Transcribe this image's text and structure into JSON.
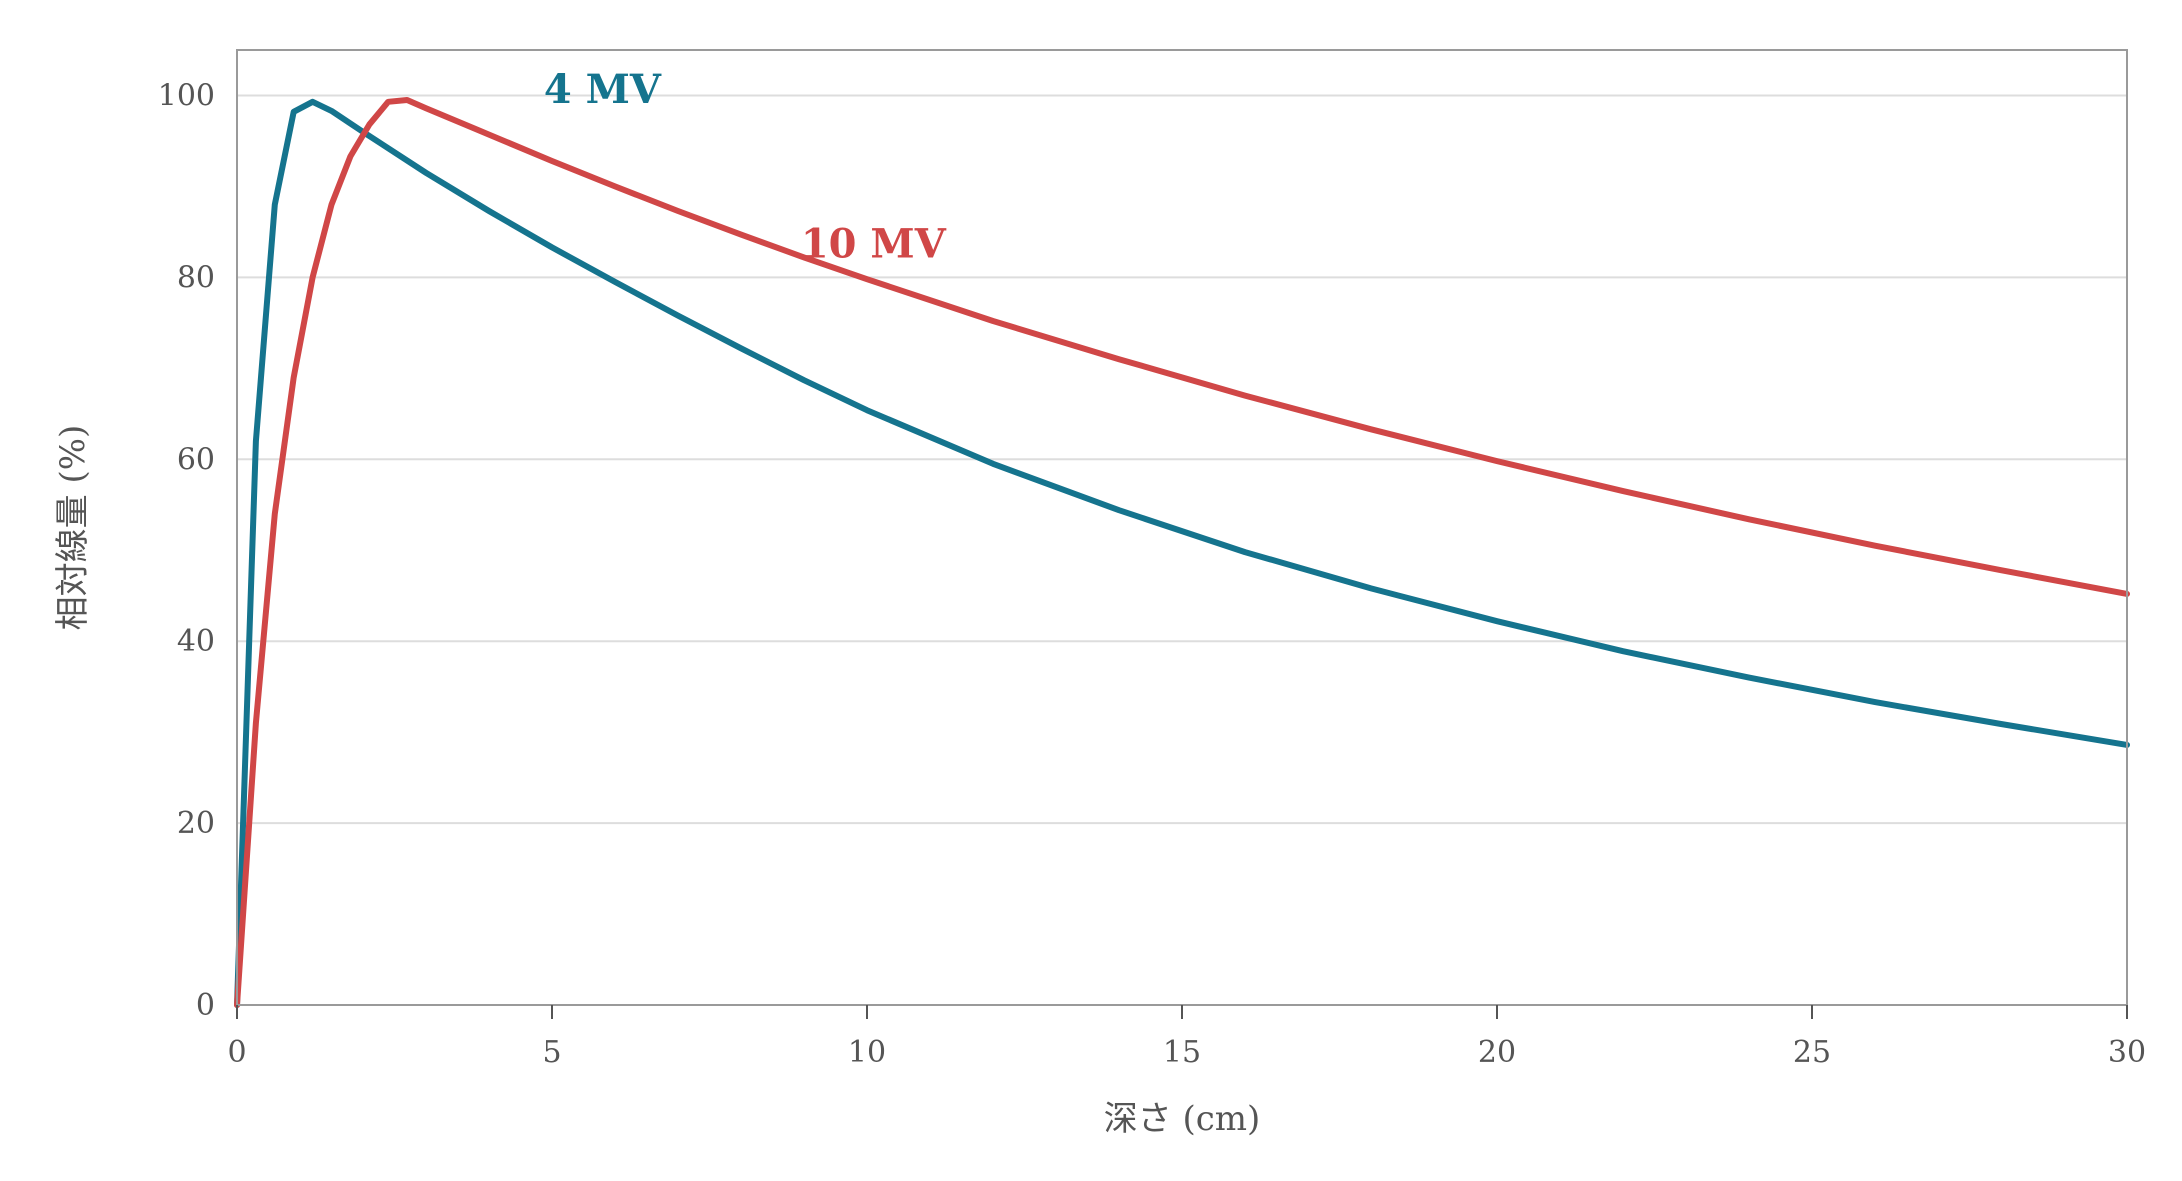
{
  "chart_data": {
    "type": "line",
    "xlabel": "深さ (cm)",
    "ylabel": "相対線量 (%)",
    "xlim": [
      0,
      30
    ],
    "ylim": [
      0,
      105
    ],
    "xticks": [
      0,
      5,
      10,
      15,
      20,
      25,
      30
    ],
    "yticks": [
      0,
      20,
      40,
      60,
      80,
      100
    ],
    "grid": "horizontal",
    "series": [
      {
        "name": "4 MV",
        "color": "#15748e",
        "x": [
          0,
          0.3,
          0.6,
          0.9,
          1.2,
          1.5,
          2,
          3,
          4,
          5,
          6,
          7,
          8,
          9,
          10,
          12,
          14,
          16,
          18,
          20,
          22,
          24,
          26,
          28,
          30
        ],
        "y": [
          0,
          62,
          88,
          98.2,
          99.3,
          98.3,
          96,
          91.5,
          87.3,
          83.3,
          79.5,
          75.8,
          72.2,
          68.7,
          65.4,
          59.5,
          54.4,
          49.8,
          45.8,
          42.2,
          38.9,
          36,
          33.3,
          30.9,
          28.6
        ]
      },
      {
        "name": "10 MV",
        "color": "#d04747",
        "x": [
          0,
          0.3,
          0.6,
          0.9,
          1.2,
          1.5,
          1.8,
          2.1,
          2.4,
          2.7,
          3,
          4,
          5,
          6,
          7,
          8,
          9,
          10,
          12,
          14,
          16,
          18,
          20,
          22,
          24,
          26,
          28,
          30
        ],
        "y": [
          0,
          31,
          54,
          69,
          80,
          88,
          93.3,
          96.8,
          99.3,
          99.5,
          98.6,
          95.7,
          92.8,
          90,
          87.3,
          84.7,
          82.2,
          79.8,
          75.2,
          71,
          67,
          63.3,
          59.8,
          56.5,
          53.4,
          50.5,
          47.8,
          45.2
        ]
      }
    ]
  }
}
